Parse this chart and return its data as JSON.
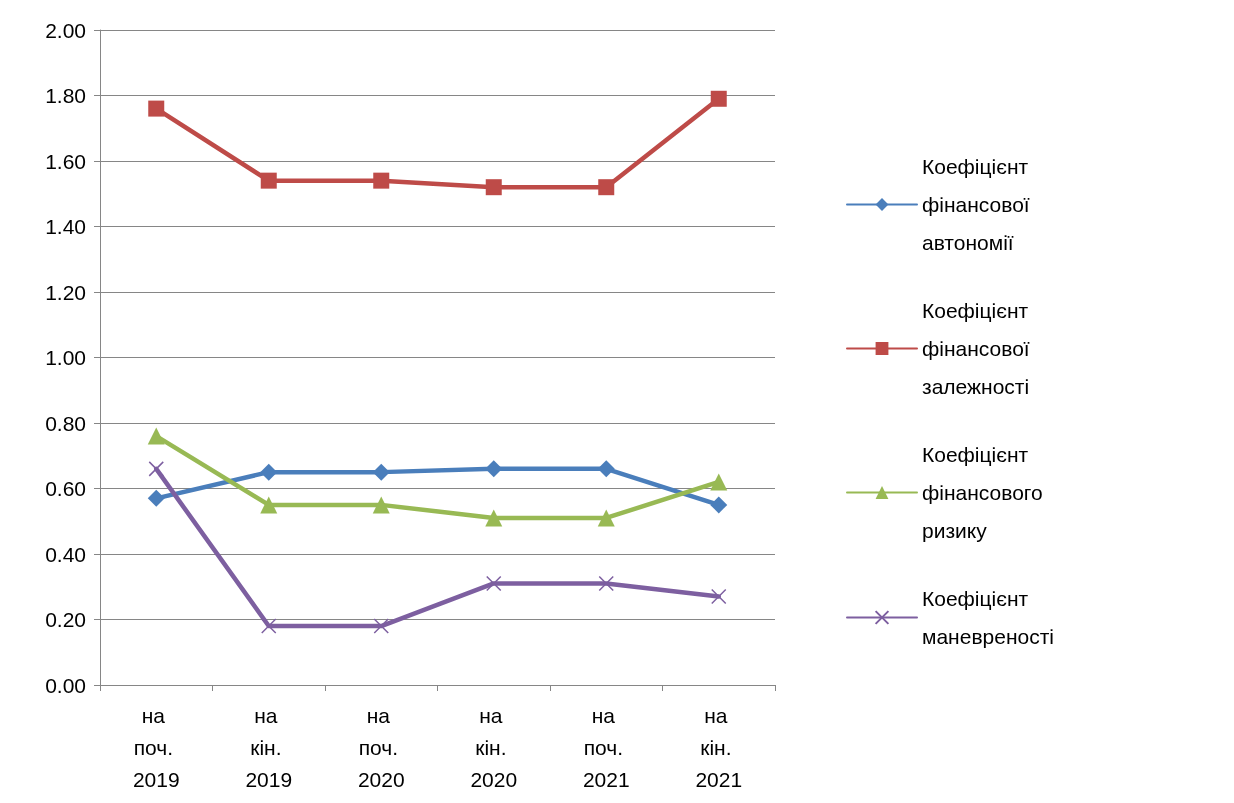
{
  "chart_data": {
    "type": "line",
    "categories": [
      "на поч. 2019",
      "на кін. 2019",
      "на поч. 2020",
      "на кін. 2020",
      "на поч. 2021",
      "на кін. 2021"
    ],
    "ylim": [
      0,
      2
    ],
    "yticks": [
      {
        "value": 0,
        "label": "0.00"
      },
      {
        "value": 0.2,
        "label": "0.20"
      },
      {
        "value": 0.4,
        "label": "0.40"
      },
      {
        "value": 0.6,
        "label": "0.60"
      },
      {
        "value": 0.8,
        "label": "0.80"
      },
      {
        "value": 1,
        "label": "1.00"
      },
      {
        "value": 1.2,
        "label": "1.20"
      },
      {
        "value": 1.4,
        "label": "1.40"
      },
      {
        "value": 1.6,
        "label": "1.60"
      },
      {
        "value": 1.8,
        "label": "1.80"
      },
      {
        "value": 2,
        "label": "2.00"
      }
    ],
    "grid": "y",
    "legend": "right",
    "line_style": "solid",
    "series": [
      {
        "name": "Коефіцієнт фінансової автономії",
        "color": "#4a7ebb",
        "marker": "diamond",
        "values": [
          0.57,
          0.65,
          0.65,
          0.66,
          0.66,
          0.55
        ]
      },
      {
        "name": "Коефіцієнт фінансової залежності",
        "color": "#be4b48",
        "marker": "square",
        "values": [
          1.76,
          1.54,
          1.54,
          1.52,
          1.52,
          1.79
        ]
      },
      {
        "name": "Коефіцієнт фінансового ризику",
        "color": "#98b954",
        "marker": "triangle",
        "values": [
          0.76,
          0.55,
          0.55,
          0.51,
          0.51,
          0.62
        ]
      },
      {
        "name": "Коефіцієнт маневреності",
        "color": "#7d5fa0",
        "marker": "cross",
        "values": [
          0.66,
          0.18,
          0.18,
          0.31,
          0.31,
          0.27
        ]
      }
    ]
  }
}
